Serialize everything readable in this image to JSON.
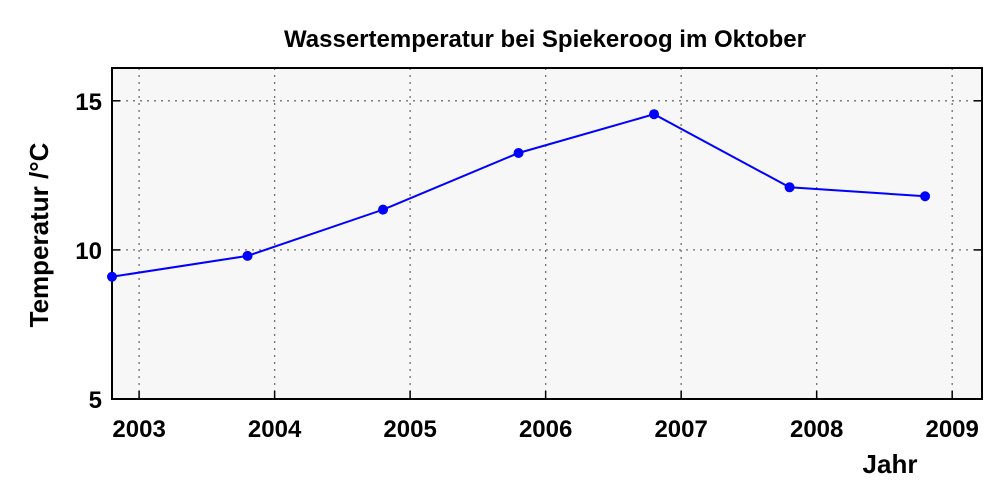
{
  "chart_data": {
    "type": "line",
    "title": "Wassertemperatur bei Spiekeroog im Oktober",
    "xlabel": "Jahr",
    "ylabel": "Temperatur /°C",
    "xlim": [
      2002.8,
      2009.22
    ],
    "ylim": [
      5,
      16.1
    ],
    "x_ticks": [
      2003,
      2004,
      2005,
      2006,
      2007,
      2008,
      2009
    ],
    "y_ticks": [
      5,
      10,
      15
    ],
    "grid": true,
    "legend": "none",
    "series": [
      {
        "x": [
          2002.8,
          2003.8,
          2004.8,
          2005.8,
          2006.8,
          2007.8,
          2008.8
        ],
        "values": [
          9.1,
          9.8,
          11.35,
          13.25,
          14.55,
          12.1,
          11.8
        ],
        "color": "#0000ff"
      }
    ],
    "colors": {
      "line": "#0000ff",
      "plot_background": "#f7f7f7",
      "grid": "#707070",
      "frame": "#000000"
    }
  }
}
